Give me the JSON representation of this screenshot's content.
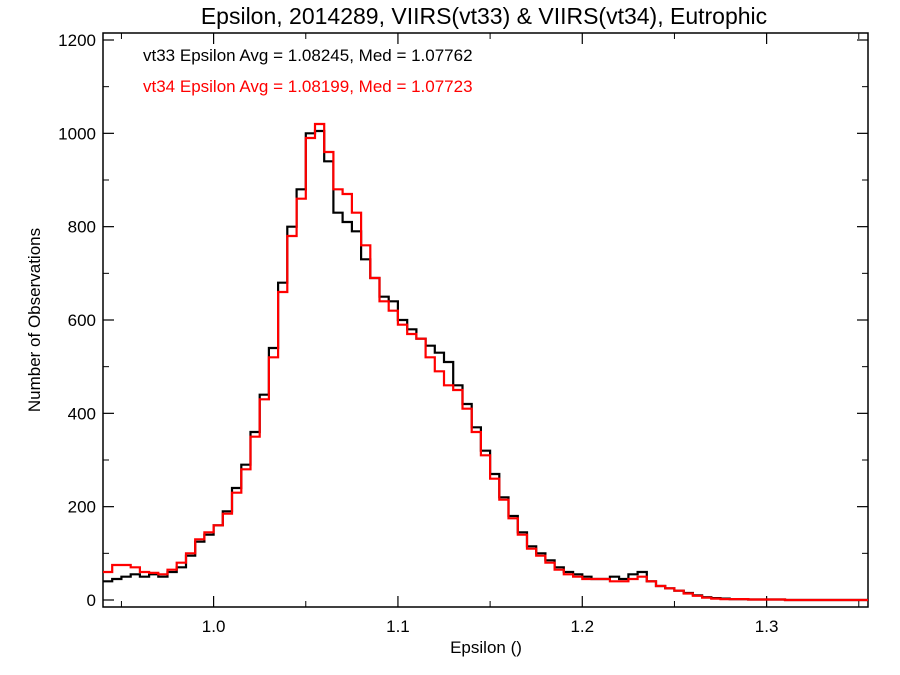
{
  "chart_data": {
    "type": "line",
    "title": "Epsilon, 2014289, VIIRS(vt33) & VIIRS(vt34), Eutrophic",
    "xlabel": "Epsilon ()",
    "ylabel": "Number of Observations",
    "xlim": [
      0.94,
      1.355
    ],
    "ylim": [
      -15,
      1215
    ],
    "xticks": [
      1.0,
      1.1,
      1.2,
      1.3
    ],
    "xtick_labels": [
      "1.0",
      "1.1",
      "1.2",
      "1.3"
    ],
    "yticks": [
      0,
      200,
      400,
      600,
      800,
      1000,
      1200
    ],
    "ytick_labels": [
      "0",
      "200",
      "400",
      "600",
      "800",
      "1000",
      "1200"
    ],
    "grid": false,
    "step": true,
    "annotations": [
      {
        "text": "vt33 Epsilon Avg = 1.08245, Med = 1.07762",
        "color": "#000000"
      },
      {
        "text": "vt34 Epsilon Avg = 1.08199, Med = 1.07723",
        "color": "#ff0000"
      }
    ],
    "series": [
      {
        "color": "#000000",
        "x": [
          0.94,
          0.945,
          0.95,
          0.955,
          0.96,
          0.965,
          0.97,
          0.975,
          0.98,
          0.985,
          0.99,
          0.995,
          1.0,
          1.005,
          1.01,
          1.015,
          1.02,
          1.025,
          1.03,
          1.035,
          1.04,
          1.045,
          1.05,
          1.055,
          1.06,
          1.065,
          1.07,
          1.075,
          1.08,
          1.085,
          1.09,
          1.095,
          1.1,
          1.105,
          1.11,
          1.115,
          1.12,
          1.125,
          1.13,
          1.135,
          1.14,
          1.145,
          1.15,
          1.155,
          1.16,
          1.165,
          1.17,
          1.175,
          1.18,
          1.185,
          1.19,
          1.195,
          1.2,
          1.205,
          1.21,
          1.215,
          1.22,
          1.225,
          1.23,
          1.235,
          1.24,
          1.245,
          1.25,
          1.255,
          1.26,
          1.265,
          1.27,
          1.275,
          1.28,
          1.29,
          1.3,
          1.31,
          1.32,
          1.33,
          1.34,
          1.355
        ],
        "y": [
          40,
          45,
          50,
          55,
          50,
          55,
          50,
          60,
          70,
          95,
          125,
          140,
          160,
          190,
          240,
          290,
          360,
          440,
          540,
          680,
          800,
          880,
          1000,
          1005,
          940,
          830,
          810,
          790,
          730,
          690,
          650,
          640,
          600,
          580,
          560,
          545,
          530,
          510,
          460,
          420,
          370,
          320,
          270,
          220,
          180,
          145,
          115,
          100,
          85,
          70,
          60,
          55,
          50,
          45,
          45,
          50,
          45,
          55,
          60,
          40,
          30,
          25,
          20,
          15,
          10,
          6,
          4,
          3,
          2,
          1,
          1,
          0,
          0,
          0,
          0,
          0
        ]
      },
      {
        "color": "#ff0000",
        "x": [
          0.94,
          0.945,
          0.95,
          0.955,
          0.96,
          0.965,
          0.97,
          0.975,
          0.98,
          0.985,
          0.99,
          0.995,
          1.0,
          1.005,
          1.01,
          1.015,
          1.02,
          1.025,
          1.03,
          1.035,
          1.04,
          1.045,
          1.05,
          1.055,
          1.06,
          1.065,
          1.07,
          1.075,
          1.08,
          1.085,
          1.09,
          1.095,
          1.1,
          1.105,
          1.11,
          1.115,
          1.12,
          1.125,
          1.13,
          1.135,
          1.14,
          1.145,
          1.15,
          1.155,
          1.16,
          1.165,
          1.17,
          1.175,
          1.18,
          1.185,
          1.19,
          1.195,
          1.2,
          1.205,
          1.21,
          1.215,
          1.22,
          1.225,
          1.23,
          1.235,
          1.24,
          1.245,
          1.25,
          1.255,
          1.26,
          1.265,
          1.27,
          1.275,
          1.28,
          1.29,
          1.3,
          1.31,
          1.32,
          1.33,
          1.34,
          1.355
        ],
        "y": [
          60,
          75,
          75,
          70,
          60,
          58,
          55,
          65,
          80,
          100,
          130,
          145,
          160,
          185,
          230,
          280,
          350,
          430,
          520,
          660,
          780,
          860,
          990,
          1020,
          960,
          880,
          870,
          830,
          760,
          690,
          640,
          620,
          590,
          570,
          560,
          520,
          490,
          460,
          450,
          410,
          360,
          310,
          260,
          215,
          175,
          140,
          110,
          95,
          80,
          65,
          55,
          50,
          45,
          45,
          45,
          40,
          40,
          45,
          50,
          40,
          30,
          25,
          20,
          14,
          9,
          5,
          3,
          2,
          2,
          1,
          1,
          0,
          0,
          0,
          0,
          0
        ]
      }
    ]
  }
}
